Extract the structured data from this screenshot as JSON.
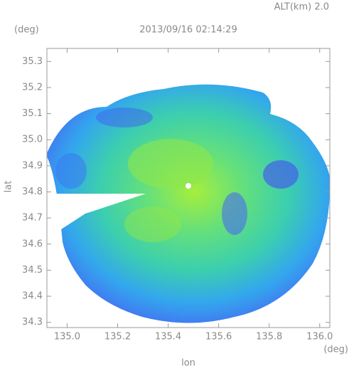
{
  "chart_data": {
    "type": "map",
    "title": "2013/09/16 02:14:29",
    "annotation": "ALT(km) 2.0",
    "xlabel": "lon",
    "ylabel": "lat",
    "x_unit": "(deg)",
    "y_unit": "(deg)",
    "xlim": [
      134.92,
      136.04
    ],
    "ylim": [
      34.28,
      35.35
    ],
    "xticks": [
      {
        "value": 135,
        "label": "135.0"
      },
      135.2,
      135.4,
      135.6,
      135.8,
      {
        "value": 136,
        "label": "136.0"
      }
    ],
    "yticks": [
      34.3,
      34.4,
      34.5,
      34.6,
      34.7,
      34.8,
      34.9,
      {
        "value": 35,
        "label": "35.0"
      },
      35.1,
      35.2,
      35.3
    ]
  }
}
